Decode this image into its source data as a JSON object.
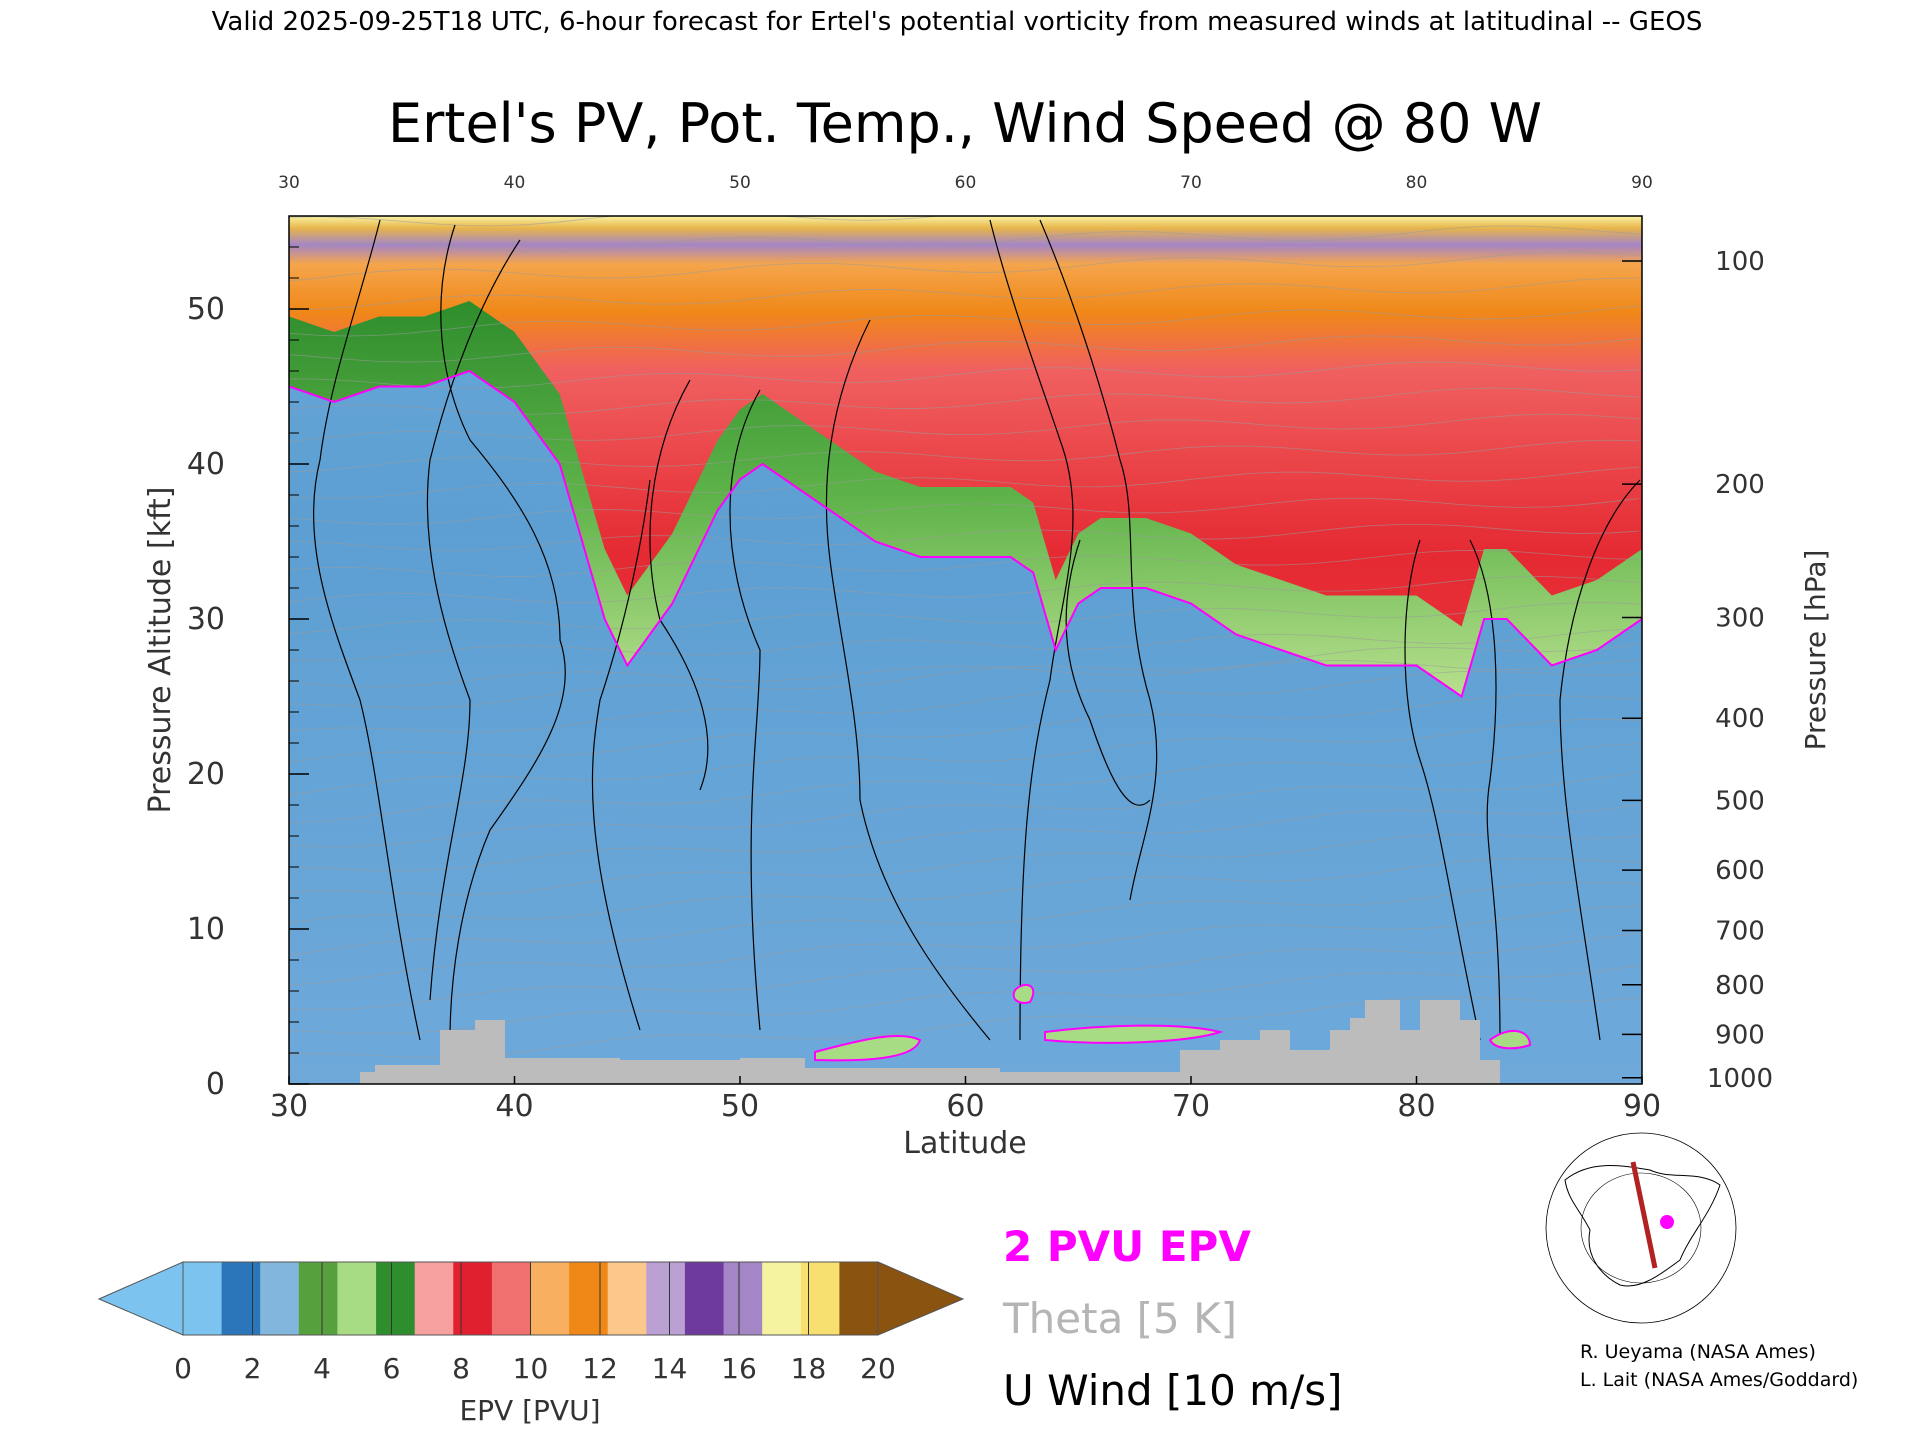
{
  "header": "Valid 2025-09-25T18 UTC, 6-hour forecast for Ertel's potential vorticity from measured winds at latitudinal -- GEOS",
  "chart_data": {
    "type": "heatmap",
    "title": "Ertel's PV, Pot. Temp., Wind Speed @ 80 W",
    "xlabel": "Latitude",
    "ylabel": "Pressure Altitude [kft]",
    "y2label": "Pressure [hPa]",
    "xlim": [
      30,
      90
    ],
    "ylim": [
      0,
      56
    ],
    "x_ticks": [
      "30",
      "40",
      "50",
      "60",
      "70",
      "80",
      "90"
    ],
    "y_ticks": [
      "0",
      "10",
      "20",
      "30",
      "40",
      "50"
    ],
    "pressure_ticks": [
      {
        "label": "100",
        "kft": 53.1
      },
      {
        "label": "200",
        "kft": 38.7
      },
      {
        "label": "300",
        "kft": 30.1
      },
      {
        "label": "400",
        "kft": 23.6
      },
      {
        "label": "500",
        "kft": 18.3
      },
      {
        "label": "600",
        "kft": 13.8
      },
      {
        "label": "700",
        "kft": 9.9
      },
      {
        "label": "800",
        "kft": 6.4
      },
      {
        "label": "900",
        "kft": 3.2
      },
      {
        "label": "1000",
        "kft": 0.4
      }
    ],
    "tropopause_2pvu": {
      "lat": [
        30,
        32,
        34,
        36,
        38,
        40,
        42,
        43,
        44,
        45,
        46,
        47,
        48,
        49,
        50,
        51,
        52,
        54,
        56,
        58,
        60,
        62,
        63,
        64,
        65,
        66,
        68,
        70,
        72,
        74,
        76,
        78,
        80,
        82,
        83,
        84,
        86,
        88,
        90
      ],
      "kft": [
        45,
        44,
        45,
        45,
        46,
        44,
        40,
        35,
        30,
        27,
        29,
        31,
        34,
        37,
        39,
        40,
        39,
        37,
        35,
        34,
        34,
        34,
        33,
        28,
        31,
        32,
        32,
        31,
        29,
        28,
        27,
        27,
        27,
        25,
        30,
        30,
        27,
        28,
        30
      ]
    },
    "colorbar": {
      "label": "EPV [PVU]",
      "ticks": [
        "0",
        "2",
        "4",
        "6",
        "8",
        "10",
        "12",
        "14",
        "16",
        "18",
        "20"
      ],
      "colors": [
        "#7cc3ef",
        "#2b76bb",
        "#82b6dc",
        "#57a03e",
        "#a8dc84",
        "#2e8d2c",
        "#f7a0a0",
        "#e0202e",
        "#f07070",
        "#f8b060",
        "#f08818",
        "#fbc78a",
        "#bba0d4",
        "#6e3b9c",
        "#a485c6",
        "#f6f3a0",
        "#f7e070",
        "#8a5410"
      ]
    },
    "legend": [
      {
        "label": "2 PVU EPV",
        "color": "#ff00ff"
      },
      {
        "label": "Theta [5 K]",
        "color": "#b5b5b5"
      },
      {
        "label": "U Wind [10 m/s]",
        "color": "#000000"
      }
    ]
  },
  "credits": [
    "R. Ueyama (NASA Ames)",
    "L. Lait (NASA Ames/Goddard)"
  ]
}
